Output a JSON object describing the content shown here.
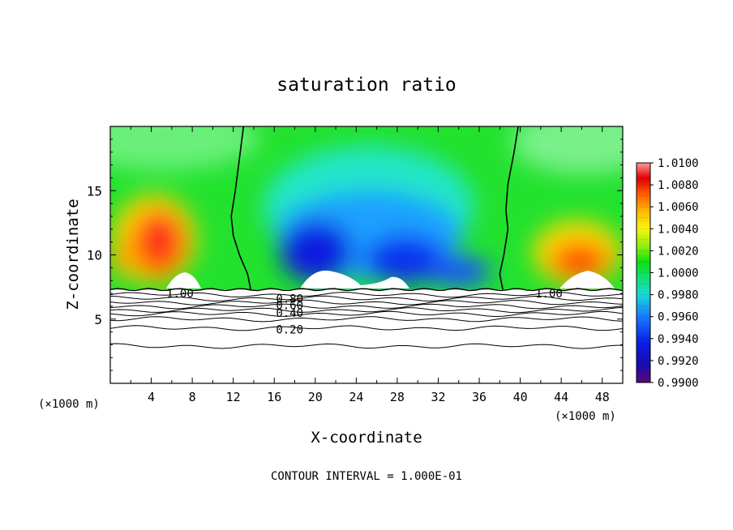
{
  "chart_data": {
    "type": "heatmap",
    "title": "saturation ratio",
    "xlabel": "X-coordinate",
    "ylabel": "Z-coordinate",
    "x_units_left": "(×1000 m)",
    "x_units_right": "(×1000 m)",
    "footer": "CONTOUR INTERVAL = 1.000E-01",
    "xlim": [
      0,
      50
    ],
    "ylim": [
      0,
      20
    ],
    "x_ticks": [
      4,
      8,
      12,
      16,
      20,
      24,
      28,
      32,
      36,
      40,
      44,
      48
    ],
    "x_tick_labels": [
      "4",
      "8",
      "12",
      "16",
      "20",
      "24",
      "28",
      "32",
      "36",
      "40",
      "44",
      "48"
    ],
    "y_ticks": [
      5,
      10,
      15
    ],
    "y_tick_labels": [
      "5",
      "10",
      "15"
    ],
    "colorbar": {
      "min": 0.99,
      "max": 1.01,
      "labels": [
        "1.0100",
        "1.0080",
        "1.0060",
        "1.0040",
        "1.0020",
        "1.0000",
        "0.9980",
        "0.9960",
        "0.9940",
        "0.9920",
        "0.9900"
      ]
    },
    "contour_labels": [
      {
        "text": "1.00",
        "x": 6.8,
        "z": 7.0
      },
      {
        "text": "1.00",
        "x": 42.8,
        "z": 7.0
      },
      {
        "text": "0.80",
        "x": 17.5,
        "z": 6.6
      },
      {
        "text": "0.60",
        "x": 17.5,
        "z": 6.1
      },
      {
        "text": "0.40",
        "x": 17.5,
        "z": 5.5
      },
      {
        "text": "0.20",
        "x": 17.5,
        "z": 4.2
      }
    ],
    "cloud_base_z": 7.3,
    "unity_contours": [
      {
        "x": [
          13.0,
          12.6,
          12.2,
          11.8,
          12.0,
          12.6,
          13.4,
          13.7
        ],
        "z": [
          20,
          17.5,
          15.0,
          13.0,
          11.5,
          10.0,
          8.5,
          7.3
        ]
      },
      {
        "x": [
          39.8,
          39.4,
          38.8,
          38.6,
          38.8,
          38.4,
          38.0,
          38.3
        ],
        "z": [
          20,
          18.0,
          15.5,
          13.5,
          12.0,
          10.0,
          8.5,
          7.3
        ]
      }
    ],
    "lower_contours": [
      {
        "value": 0.9,
        "z": 6.9
      },
      {
        "value": 0.8,
        "z": 6.6
      },
      {
        "value": 0.7,
        "z": 6.3
      },
      {
        "value": 0.6,
        "z": 6.0
      },
      {
        "value": 0.5,
        "z": 5.7
      },
      {
        "value": 0.4,
        "z": 5.4
      },
      {
        "value": 0.3,
        "z": 5.0
      },
      {
        "value": 0.2,
        "z": 4.3
      },
      {
        "value": 0.1,
        "z": 2.9
      }
    ]
  }
}
